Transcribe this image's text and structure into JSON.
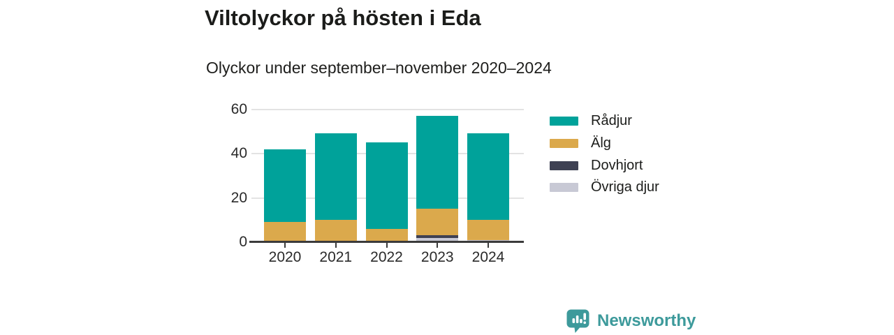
{
  "header": {
    "title": "Viltolyckor på hösten i Eda",
    "subtitle": "Olyckor under september–november 2020–2024"
  },
  "chart_data": {
    "type": "bar",
    "stacked": true,
    "title": "Viltolyckor på hösten i Eda",
    "subtitle": "Olyckor under september–november 2020–2024",
    "categories": [
      "2020",
      "2021",
      "2022",
      "2023",
      "2024"
    ],
    "series": [
      {
        "name": "Rådjur",
        "color": "#00a29a",
        "values": [
          33,
          39,
          39,
          42,
          39
        ]
      },
      {
        "name": "Älg",
        "color": "#dba94c",
        "values": [
          9,
          10,
          6,
          12,
          9
        ]
      },
      {
        "name": "Dovhjort",
        "color": "#3e4153",
        "values": [
          0,
          0,
          0,
          1,
          0
        ]
      },
      {
        "name": "Övriga djur",
        "color": "#c8c9d5",
        "values": [
          0,
          0,
          0,
          2,
          1
        ]
      }
    ],
    "totals": [
      42,
      49,
      45,
      57,
      49
    ],
    "stack_order": "last series at bottom, first series on top",
    "xlabel": "",
    "ylabel": "",
    "ylim": [
      0,
      60
    ],
    "yticks": [
      0,
      20,
      40,
      60
    ],
    "grid": true,
    "legend_position": "right"
  },
  "colors": {
    "axis": "#3b3b3b",
    "gridline": "#e3e3e3",
    "text": "#1b1c1a",
    "brand": "#3d9a9b"
  },
  "footer": {
    "brand": "Newsworthy",
    "logo_icon": "speech-bubble-bar-chart-icon"
  }
}
